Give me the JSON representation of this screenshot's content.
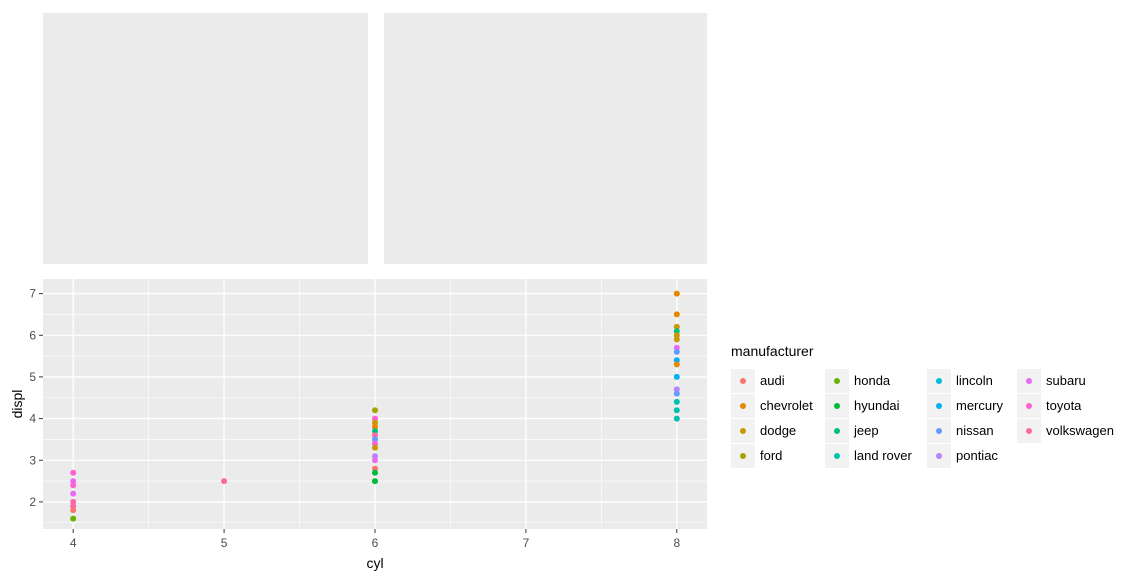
{
  "chart_data": {
    "type": "scatter",
    "xlabel": "cyl",
    "ylabel": "displ",
    "xlim": [
      3.8,
      8.2
    ],
    "ylim": [
      1.35,
      7.35
    ],
    "x_ticks": [
      4,
      5,
      6,
      7,
      8
    ],
    "y_ticks": [
      2,
      3,
      4,
      5,
      6,
      7
    ],
    "grid": true,
    "legend_position": "right",
    "legend": {
      "title": "manufacturer",
      "entries": [
        {
          "name": "audi",
          "color": "#F8766D"
        },
        {
          "name": "chevrolet",
          "color": "#E58700"
        },
        {
          "name": "dodge",
          "color": "#C99800"
        },
        {
          "name": "ford",
          "color": "#A3A500"
        },
        {
          "name": "honda",
          "color": "#6BB100"
        },
        {
          "name": "hyundai",
          "color": "#00BA38"
        },
        {
          "name": "jeep",
          "color": "#00BF7D"
        },
        {
          "name": "land rover",
          "color": "#00C0AF"
        },
        {
          "name": "lincoln",
          "color": "#00BCD8"
        },
        {
          "name": "mercury",
          "color": "#00B0F6"
        },
        {
          "name": "nissan",
          "color": "#619CFF"
        },
        {
          "name": "pontiac",
          "color": "#B983FF"
        },
        {
          "name": "subaru",
          "color": "#E76BF3"
        },
        {
          "name": "toyota",
          "color": "#FD61D1"
        },
        {
          "name": "volkswagen",
          "color": "#FF67A4"
        }
      ]
    },
    "points": [
      {
        "x": 4,
        "y": 2.7,
        "c": "#FD61D1"
      },
      {
        "x": 4,
        "y": 2.5,
        "c": "#E76BF3"
      },
      {
        "x": 4,
        "y": 2.4,
        "c": "#FD61D1"
      },
      {
        "x": 4,
        "y": 2.2,
        "c": "#E76BF3"
      },
      {
        "x": 4,
        "y": 2.0,
        "c": "#FF67A4"
      },
      {
        "x": 4,
        "y": 1.9,
        "c": "#FF67A4"
      },
      {
        "x": 4,
        "y": 1.8,
        "c": "#F8766D"
      },
      {
        "x": 4,
        "y": 1.6,
        "c": "#6BB100"
      },
      {
        "x": 5,
        "y": 2.5,
        "c": "#FF67A4"
      },
      {
        "x": 6,
        "y": 4.2,
        "c": "#A3A500"
      },
      {
        "x": 6,
        "y": 4.0,
        "c": "#FD61D1"
      },
      {
        "x": 6,
        "y": 3.9,
        "c": "#C99800"
      },
      {
        "x": 6,
        "y": 3.8,
        "c": "#E58700"
      },
      {
        "x": 6,
        "y": 3.7,
        "c": "#00BF7D"
      },
      {
        "x": 6,
        "y": 3.6,
        "c": "#FF67A4"
      },
      {
        "x": 6,
        "y": 3.5,
        "c": "#619CFF"
      },
      {
        "x": 6,
        "y": 3.4,
        "c": "#FD61D1"
      },
      {
        "x": 6,
        "y": 3.3,
        "c": "#C99800"
      },
      {
        "x": 6,
        "y": 3.1,
        "c": "#B983FF"
      },
      {
        "x": 6,
        "y": 3.0,
        "c": "#E76BF3"
      },
      {
        "x": 6,
        "y": 2.8,
        "c": "#F8766D"
      },
      {
        "x": 6,
        "y": 2.7,
        "c": "#00BA38"
      },
      {
        "x": 6,
        "y": 2.5,
        "c": "#00BA38"
      },
      {
        "x": 8,
        "y": 7.0,
        "c": "#E58700"
      },
      {
        "x": 8,
        "y": 6.5,
        "c": "#E58700"
      },
      {
        "x": 8,
        "y": 6.2,
        "c": "#C99800"
      },
      {
        "x": 8,
        "y": 6.1,
        "c": "#00BF7D"
      },
      {
        "x": 8,
        "y": 6.0,
        "c": "#C99800"
      },
      {
        "x": 8,
        "y": 5.9,
        "c": "#C99800"
      },
      {
        "x": 8,
        "y": 5.7,
        "c": "#E76BF3"
      },
      {
        "x": 8,
        "y": 5.6,
        "c": "#619CFF"
      },
      {
        "x": 8,
        "y": 5.4,
        "c": "#00B0F6"
      },
      {
        "x": 8,
        "y": 5.3,
        "c": "#E58700"
      },
      {
        "x": 8,
        "y": 5.0,
        "c": "#00B0F6"
      },
      {
        "x": 8,
        "y": 4.7,
        "c": "#B983FF"
      },
      {
        "x": 8,
        "y": 4.6,
        "c": "#619CFF"
      },
      {
        "x": 8,
        "y": 4.4,
        "c": "#00C0AF"
      },
      {
        "x": 8,
        "y": 4.2,
        "c": "#00C0AF"
      },
      {
        "x": 8,
        "y": 4.0,
        "c": "#00C0AF"
      }
    ]
  }
}
